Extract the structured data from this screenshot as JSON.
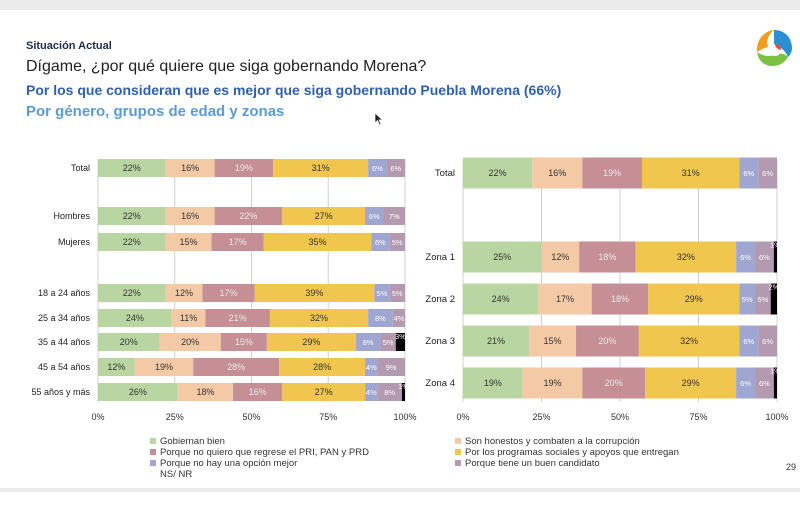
{
  "header": {
    "kicker": "Situación Actual",
    "question": "Dígame, ¿por qué quiere que siga gobernando Morena?",
    "subtitle": "Por los que consideran que es mejor que siga gobernando Puebla Morena (66%)",
    "subtitle2": "Por género, grupos de edad y zonas"
  },
  "page_number": "29",
  "colors": [
    "#b9d5a2",
    "#f3c9a6",
    "#c58f95",
    "#f0c64e",
    "#9fa6d2",
    "#b39ab0"
  ],
  "legend": [
    "Gobiernan bien",
    "Son honestos y combaten a la corrupción",
    "Porque no quiero que regrese el PRI, PAN y PRD",
    "Por los programas sociales y apoyos que entregan",
    "Porque no hay una opción mejor",
    "Porque tiene un buen candidato",
    "NS/ NR"
  ],
  "chart_data": [
    {
      "type": "bar",
      "stacked": true,
      "orientation": "horizontal",
      "xlim": [
        0,
        100
      ],
      "xticks": [
        "0%",
        "25%",
        "50%",
        "75%",
        "100%"
      ],
      "categories": [
        "Total",
        "Hombres",
        "Mujeres",
        "18 a 24 años",
        "25 a 34 años",
        "35 a 44 años",
        "45 a 54 años",
        "55 años y más"
      ],
      "series": [
        {
          "name": "Gobiernan bien",
          "values": [
            22,
            22,
            22,
            22,
            24,
            20,
            12,
            26
          ]
        },
        {
          "name": "Son honestos y combaten a la corrupción",
          "values": [
            16,
            16,
            15,
            12,
            11,
            20,
            19,
            18
          ]
        },
        {
          "name": "Porque no quiero que regrese el PRI, PAN y PRD",
          "values": [
            19,
            22,
            17,
            17,
            21,
            15,
            28,
            16
          ]
        },
        {
          "name": "Por los programas sociales y apoyos que entregan",
          "values": [
            31,
            27,
            35,
            39,
            32,
            29,
            28,
            27
          ]
        },
        {
          "name": "Porque no hay una opción mejor",
          "values": [
            6,
            6,
            6,
            5,
            8,
            8,
            4,
            4
          ]
        },
        {
          "name": "Porque tiene un buen candidato",
          "values": [
            6,
            7,
            5,
            5,
            4,
            5,
            9,
            8
          ]
        },
        {
          "name": "NS/ NR",
          "values": [
            0,
            0,
            0,
            0,
            0,
            3,
            0,
            1
          ]
        }
      ]
    },
    {
      "type": "bar",
      "stacked": true,
      "orientation": "horizontal",
      "xlim": [
        0,
        100
      ],
      "xticks": [
        "0%",
        "25%",
        "50%",
        "75%",
        "100%"
      ],
      "categories": [
        "Total",
        "Zona 1",
        "Zona 2",
        "Zona 3",
        "Zona 4"
      ],
      "series": [
        {
          "name": "Gobiernan bien",
          "values": [
            22,
            25,
            24,
            21,
            19
          ]
        },
        {
          "name": "Son honestos y combaten a la corrupción",
          "values": [
            16,
            12,
            17,
            15,
            19
          ]
        },
        {
          "name": "Porque no quiero que regrese el PRI, PAN y PRD",
          "values": [
            19,
            18,
            18,
            20,
            20
          ]
        },
        {
          "name": "Por los programas sociales y apoyos que entregan",
          "values": [
            31,
            32,
            29,
            32,
            29
          ]
        },
        {
          "name": "Porque no hay una opción mejor",
          "values": [
            6,
            6,
            5,
            6,
            6
          ]
        },
        {
          "name": "Porque tiene un buen candidato",
          "values": [
            6,
            6,
            5,
            6,
            6
          ]
        },
        {
          "name": "NS/ NR",
          "values": [
            0,
            1,
            2,
            0,
            1
          ]
        }
      ]
    }
  ]
}
